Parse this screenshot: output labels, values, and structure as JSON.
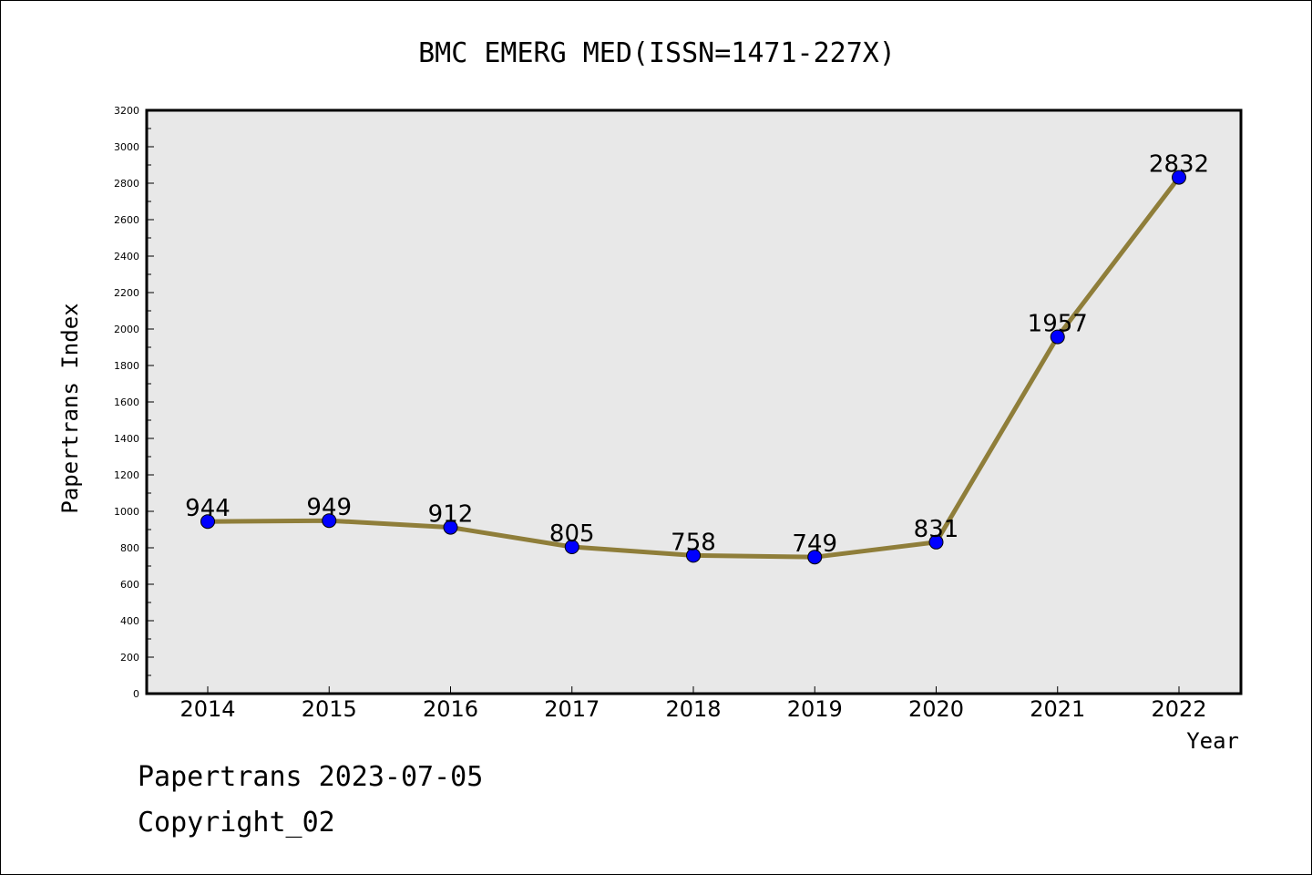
{
  "chart_data": {
    "type": "line",
    "title": "BMC EMERG MED(ISSN=1471-227X)",
    "xlabel": "Year",
    "ylabel": "Papertrans Index",
    "categories": [
      "2014",
      "2015",
      "2016",
      "2017",
      "2018",
      "2019",
      "2020",
      "2021",
      "2022"
    ],
    "series": [
      {
        "values": [
          944,
          949,
          912,
          805,
          758,
          749,
          831,
          1957,
          2832
        ]
      }
    ],
    "ylim": [
      0,
      3200
    ],
    "yticks": [
      0,
      200,
      400,
      600,
      800,
      1000,
      1200,
      1400,
      1600,
      1800,
      2000,
      2200,
      2400,
      2600,
      2800,
      3000,
      3200
    ],
    "grid": false,
    "legend": "none",
    "colors": {
      "line": "#8f7e3a",
      "marker": "#0000ff",
      "plot_background": "#e8e8e8"
    }
  },
  "footer": {
    "line1": "Papertrans 2023-07-05",
    "line2": "Copyright_02"
  }
}
